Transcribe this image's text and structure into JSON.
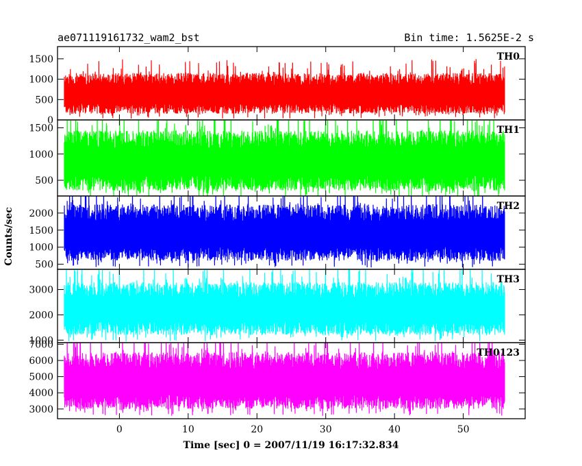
{
  "header": {
    "title": "ae071119161732_wam2_bst",
    "bin_time": "Bin time: 1.5625E-2 s"
  },
  "chart_data": {
    "type": "line",
    "xlabel": "Time [sec] 0 = 2007/11/19 16:17:32.834",
    "ylabel": "Counts/sec",
    "xlim": [
      -9,
      59
    ],
    "xticks": [
      0,
      10,
      20,
      30,
      40,
      50
    ],
    "x_data_range": [
      -8,
      56
    ],
    "panels": [
      {
        "name": "TH0",
        "color": "#ff0000",
        "ylim": [
          0,
          1800
        ],
        "yticks": [
          0,
          500,
          1000,
          1500
        ],
        "typical_band": [
          150,
          1150
        ],
        "mean": 600
      },
      {
        "name": "TH1",
        "color": "#00ff00",
        "ylim": [
          200,
          1650
        ],
        "yticks": [
          500,
          1000,
          1500
        ],
        "typical_band": [
          300,
          1450
        ],
        "mean": 800
      },
      {
        "name": "TH2",
        "color": "#0000ff",
        "ylim": [
          350,
          2500
        ],
        "yticks": [
          500,
          1000,
          1500,
          2000
        ],
        "typical_band": [
          600,
          2250
        ],
        "mean": 1300
      },
      {
        "name": "TH3",
        "color": "#00ffff",
        "ylim": [
          900,
          3800
        ],
        "yticks": [
          1000,
          2000,
          3000
        ],
        "typical_band": [
          1200,
          3300
        ],
        "mean": 2200
      },
      {
        "name": "TH0123",
        "color": "#ff00ff",
        "ylim": [
          2400,
          7100
        ],
        "yticks": [
          3000,
          4000,
          5000,
          6000,
          7000
        ],
        "typical_band": [
          3000,
          6500
        ],
        "mean": 4600
      }
    ]
  }
}
